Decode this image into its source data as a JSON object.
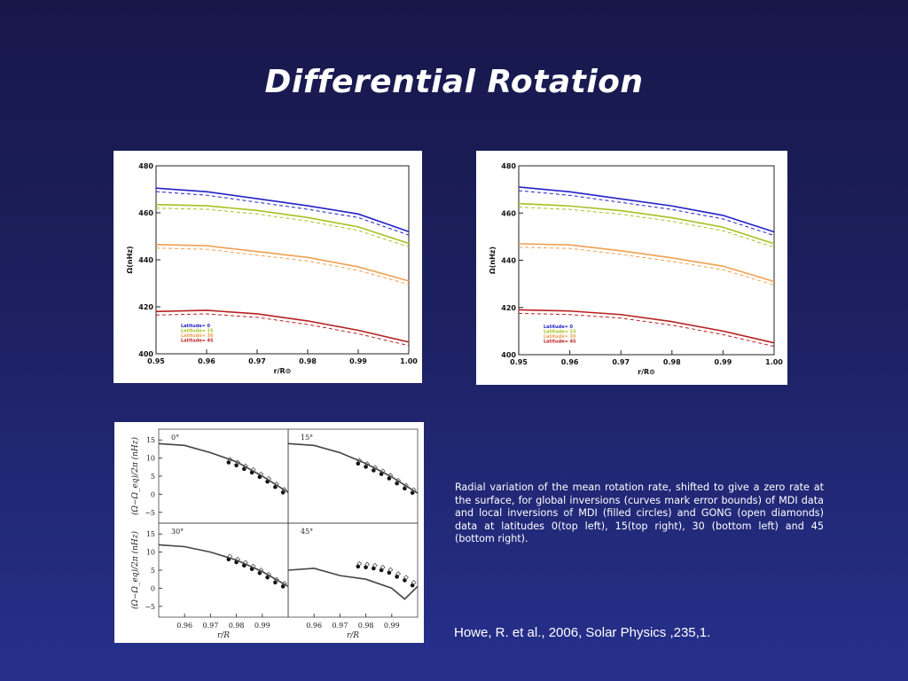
{
  "slide": {
    "title": "Differential Rotation",
    "caption": "Radial variation of the mean rotation rate, shifted to give a zero rate at the surface, for global inversions (curves mark error bounds) of MDI data and local inversions of MDI (filled circles) and GONG (open diamonds) data at latitudes 0(top left), 15(top right), 30 (bottom left) and 45 (bottom right).",
    "citation": "Howe, R. et al., 2006, Solar Physics ,235,1."
  },
  "colors": {
    "lat0": "#2222c8",
    "lat15": "#a8c020",
    "lat30": "#f0a050",
    "lat45": "#b82020",
    "bg_top": "#17174a",
    "bg_bottom": "#26308c"
  },
  "chart_data": [
    {
      "type": "line",
      "xlabel": "r/R⊙",
      "ylabel": "Ω(nHz)",
      "xlim": [
        0.95,
        1.0
      ],
      "ylim": [
        400,
        480
      ],
      "x_ticks": [
        "0.95",
        "0.96",
        "0.97",
        "0.98",
        "0.99",
        "1.00"
      ],
      "y_ticks": [
        "400",
        "420",
        "440",
        "460",
        "480"
      ],
      "legend": {
        "placement": "bottom-left",
        "entries": [
          "Latitude= 0",
          "Latitude= 15",
          "Latitude= 30",
          "Latitude= 45"
        ]
      },
      "series": [
        {
          "name": "Latitude= 0",
          "color": "#2222c8",
          "x": [
            0.95,
            0.96,
            0.97,
            0.98,
            0.99,
            1.0
          ],
          "y": [
            470.5,
            469,
            466,
            463,
            459.5,
            452
          ]
        },
        {
          "name": "Latitude= 15",
          "color": "#a8c020",
          "x": [
            0.95,
            0.96,
            0.97,
            0.98,
            0.99,
            1.0
          ],
          "y": [
            463.5,
            463,
            461,
            458,
            454,
            447
          ]
        },
        {
          "name": "Latitude= 30",
          "color": "#f0a050",
          "x": [
            0.95,
            0.96,
            0.97,
            0.98,
            0.99,
            1.0
          ],
          "y": [
            446.5,
            446,
            443.5,
            441,
            437,
            431
          ]
        },
        {
          "name": "Latitude= 45",
          "color": "#b82020",
          "x": [
            0.95,
            0.96,
            0.97,
            0.98,
            0.99,
            1.0
          ],
          "y": [
            418,
            418.5,
            417,
            414,
            410,
            405
          ]
        }
      ]
    },
    {
      "type": "line",
      "xlabel": "r/R⊙",
      "ylabel": "Ω(nHz)",
      "xlim": [
        0.95,
        1.0
      ],
      "ylim": [
        400,
        480
      ],
      "x_ticks": [
        "0.95",
        "0.96",
        "0.97",
        "0.98",
        "0.99",
        "1.00"
      ],
      "y_ticks": [
        "400",
        "420",
        "440",
        "460",
        "480"
      ],
      "legend": {
        "placement": "bottom-left",
        "entries": [
          "Latitude= 0",
          "Latitude= 15",
          "Latitude= 30",
          "Latitude= 45"
        ]
      },
      "series": [
        {
          "name": "Latitude= 0",
          "color": "#2222c8",
          "x": [
            0.95,
            0.96,
            0.97,
            0.98,
            0.99,
            1.0
          ],
          "y": [
            471,
            469,
            466,
            463,
            459,
            452
          ]
        },
        {
          "name": "Latitude= 15",
          "color": "#a8c020",
          "x": [
            0.95,
            0.96,
            0.97,
            0.98,
            0.99,
            1.0
          ],
          "y": [
            464,
            463,
            461,
            458,
            454,
            447
          ]
        },
        {
          "name": "Latitude= 30",
          "color": "#f0a050",
          "x": [
            0.95,
            0.96,
            0.97,
            0.98,
            0.99,
            1.0
          ],
          "y": [
            447,
            446.5,
            444,
            441,
            437.5,
            431
          ]
        },
        {
          "name": "Latitude= 45",
          "color": "#b82020",
          "x": [
            0.95,
            0.96,
            0.97,
            0.98,
            0.99,
            1.0
          ],
          "y": [
            419,
            418.5,
            417,
            414,
            410,
            405
          ]
        }
      ]
    },
    {
      "type": "scatter",
      "xlabel": "r/R",
      "ylabel": "(Ω−Ω_eq)/2π (nHz)",
      "xlim": [
        0.95,
        1.0
      ],
      "ylim": [
        -8,
        18
      ],
      "x_ticks": [
        "0.96",
        "0.97",
        "0.98",
        "0.99"
      ],
      "y_ticks": [
        "15",
        "10",
        "5",
        "0",
        "−5"
      ],
      "panels": [
        {
          "label": "0°",
          "curve_x": [
            0.95,
            0.96,
            0.97,
            0.98,
            0.99,
            1.0
          ],
          "curve_y": [
            14,
            13.5,
            11.5,
            9,
            5,
            0.5
          ],
          "points_x": [
            0.977,
            0.98,
            0.983,
            0.986,
            0.989,
            0.992,
            0.995,
            0.998
          ],
          "points_y": [
            8.8,
            8,
            7,
            6,
            4.8,
            3.5,
            2,
            0.5
          ]
        },
        {
          "label": "15°",
          "curve_x": [
            0.95,
            0.96,
            0.97,
            0.98,
            0.99,
            1.0
          ],
          "curve_y": [
            14,
            13.5,
            11.5,
            8.5,
            4.8,
            0.3
          ],
          "points_x": [
            0.977,
            0.98,
            0.983,
            0.986,
            0.989,
            0.992,
            0.995,
            0.998
          ],
          "points_y": [
            8.5,
            7.6,
            6.6,
            5.6,
            4.4,
            3,
            1.6,
            0.4
          ]
        },
        {
          "label": "30°",
          "curve_x": [
            0.95,
            0.96,
            0.97,
            0.98,
            0.99,
            1.0
          ],
          "curve_y": [
            12,
            11.5,
            10,
            7.8,
            4.6,
            0.5
          ],
          "points_x": [
            0.977,
            0.98,
            0.983,
            0.986,
            0.989,
            0.992,
            0.995,
            0.998
          ],
          "points_y": [
            8,
            7.2,
            6.3,
            5.3,
            4.2,
            3,
            1.6,
            0.5
          ]
        },
        {
          "label": "45°",
          "curve_x": [
            0.95,
            0.96,
            0.97,
            0.98,
            0.99,
            0.995,
            1.0
          ],
          "curve_y": [
            5,
            5.5,
            3.5,
            2.5,
            0,
            -3,
            0.5
          ],
          "points_x": [
            0.977,
            0.98,
            0.983,
            0.986,
            0.989,
            0.992,
            0.995,
            0.998
          ],
          "points_y": [
            6,
            5.8,
            5.5,
            5,
            4.3,
            3.2,
            2.2,
            0.8
          ]
        }
      ]
    }
  ]
}
